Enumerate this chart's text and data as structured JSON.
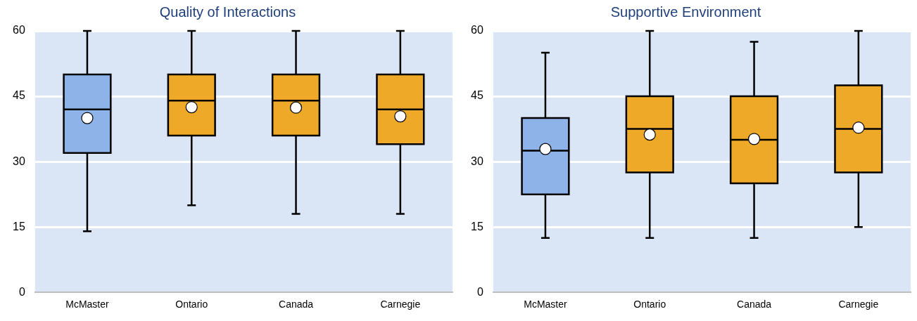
{
  "chart_data": [
    {
      "type": "box",
      "title": "Quality of Interactions",
      "categories": [
        "McMaster",
        "Ontario",
        "Canada",
        "Carnegie"
      ],
      "colors": [
        "#8db3e8",
        "#efa928",
        "#efa928",
        "#efa928"
      ],
      "boxes": [
        {
          "low": 14,
          "q1": 32,
          "median": 42,
          "q3": 50,
          "high": 60,
          "mean": 40
        },
        {
          "low": 20,
          "q1": 36,
          "median": 44,
          "q3": 50,
          "high": 60,
          "mean": 42.5
        },
        {
          "low": 18,
          "q1": 36,
          "median": 44,
          "q3": 50,
          "high": 60,
          "mean": 42.4
        },
        {
          "low": 18,
          "q1": 34,
          "median": 42,
          "q3": 50,
          "high": 60,
          "mean": 40.4
        }
      ],
      "ylim": [
        0,
        60
      ],
      "yticks": [
        0,
        15,
        30,
        45,
        60
      ],
      "grid": "y",
      "legend": false
    },
    {
      "type": "box",
      "title": "Supportive Environment",
      "categories": [
        "McMaster",
        "Ontario",
        "Canada",
        "Carnegie"
      ],
      "colors": [
        "#8db3e8",
        "#efa928",
        "#efa928",
        "#efa928"
      ],
      "boxes": [
        {
          "low": 12.5,
          "q1": 22.5,
          "median": 32.5,
          "q3": 40,
          "high": 55,
          "mean": 32.9
        },
        {
          "low": 12.5,
          "q1": 27.5,
          "median": 37.5,
          "q3": 45,
          "high": 60,
          "mean": 36.2
        },
        {
          "low": 12.5,
          "q1": 25,
          "median": 35,
          "q3": 45,
          "high": 57.5,
          "mean": 35.2
        },
        {
          "low": 15,
          "q1": 27.5,
          "median": 37.5,
          "q3": 47.5,
          "high": 60,
          "mean": 37.8
        }
      ],
      "ylim": [
        0,
        60
      ],
      "yticks": [
        0,
        15,
        30,
        45,
        60
      ],
      "grid": "y",
      "legend": false
    }
  ]
}
